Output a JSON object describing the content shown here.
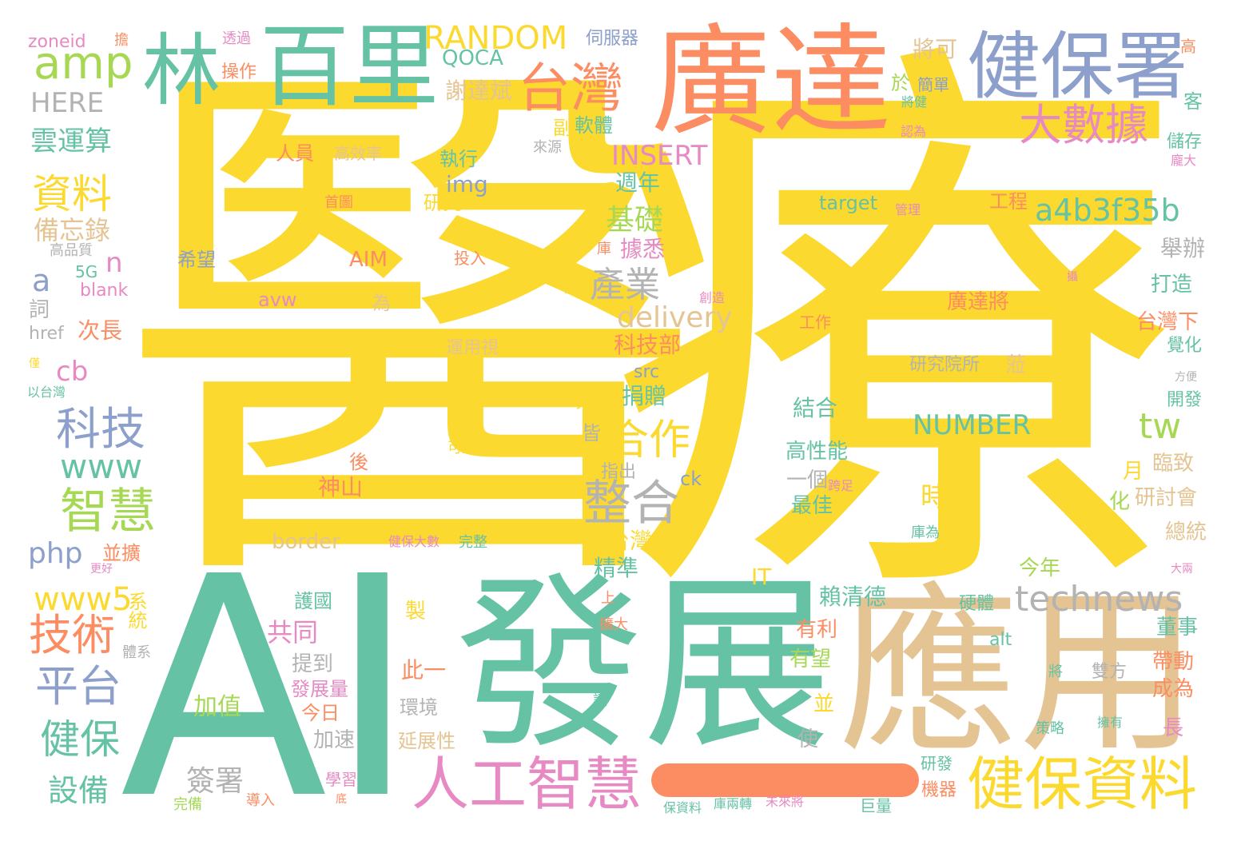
{
  "palette": {
    "yellow": "#fbd92f",
    "teal": "#66c2a5",
    "orange": "#fc8d62",
    "blue": "#8da0cb",
    "pink": "#e78ac3",
    "green": "#a6d854",
    "tan": "#e5c494",
    "gray": "#b3b3b3"
  },
  "words": [
    {
      "text": "醫",
      "color": "yellow"
    },
    {
      "text": "療",
      "color": "yellow"
    },
    {
      "text": "AI",
      "color": "teal"
    },
    {
      "text": "發展",
      "color": "teal"
    },
    {
      "text": "應用",
      "color": "tan"
    },
    {
      "text": "廣達",
      "color": "orange"
    },
    {
      "text": "百里",
      "color": "teal"
    },
    {
      "text": "林",
      "color": "teal"
    },
    {
      "text": "健保署",
      "color": "blue"
    },
    {
      "text": "amp",
      "color": "green"
    },
    {
      "text": "台灣",
      "color": "orange"
    },
    {
      "text": "大數據",
      "color": "pink"
    },
    {
      "text": "RANDOM",
      "color": "yellow"
    },
    {
      "text": "QOCA",
      "color": "teal"
    },
    {
      "text": "HERE",
      "color": "gray"
    },
    {
      "text": "zoneid",
      "color": "pink"
    },
    {
      "text": "雲運算",
      "color": "teal"
    },
    {
      "text": "資料",
      "color": "yellow"
    },
    {
      "text": "備忘錄",
      "color": "tan"
    },
    {
      "text": "科技",
      "color": "blue"
    },
    {
      "text": "www",
      "color": "teal"
    },
    {
      "text": "智慧",
      "color": "green"
    },
    {
      "text": "php",
      "color": "blue"
    },
    {
      "text": "www5",
      "color": "yellow"
    },
    {
      "text": "技術",
      "color": "orange"
    },
    {
      "text": "平台",
      "color": "blue"
    },
    {
      "text": "健保",
      "color": "teal"
    },
    {
      "text": "設備",
      "color": "teal"
    },
    {
      "text": "人工智慧",
      "color": "pink"
    },
    {
      "text": "健保資料",
      "color": "yellow"
    },
    {
      "text": "technews",
      "color": "gray"
    },
    {
      "text": "a4b3f35b",
      "color": "teal"
    },
    {
      "text": "整合",
      "color": "gray"
    },
    {
      "text": "合作",
      "color": "yellow"
    },
    {
      "text": "NUMBER",
      "color": "teal"
    },
    {
      "text": "INSERT",
      "color": "pink"
    },
    {
      "text": "delivery",
      "color": "tan"
    },
    {
      "text": "產業",
      "color": "gray"
    },
    {
      "text": "基礎",
      "color": "green"
    },
    {
      "text": "tw",
      "color": "green"
    },
    {
      "text": "cb",
      "color": "pink"
    },
    {
      "text": "a",
      "color": "blue"
    },
    {
      "text": "n",
      "color": "pink"
    },
    {
      "text": "5G",
      "color": "teal"
    },
    {
      "text": "blank",
      "color": "pink"
    },
    {
      "text": "href",
      "color": "gray"
    },
    {
      "text": "次長",
      "color": "orange"
    },
    {
      "text": "詞",
      "color": "gray"
    },
    {
      "text": "高品質",
      "color": "gray"
    },
    {
      "text": "以台灣",
      "color": "teal"
    },
    {
      "text": "僅",
      "color": "yellow"
    },
    {
      "text": "系統",
      "color": "yellow"
    },
    {
      "text": "並擴",
      "color": "orange"
    },
    {
      "text": "更好",
      "color": "pink"
    },
    {
      "text": "體系",
      "color": "gray"
    },
    {
      "text": "伺服器",
      "color": "blue"
    },
    {
      "text": "將可",
      "color": "tan"
    },
    {
      "text": "謝達斌",
      "color": "tan"
    },
    {
      "text": "於",
      "color": "green"
    },
    {
      "text": "簡單",
      "color": "blue"
    },
    {
      "text": "將健",
      "color": "teal"
    },
    {
      "text": "副",
      "color": "yellow"
    },
    {
      "text": "軟體",
      "color": "teal"
    },
    {
      "text": "來源",
      "color": "gray"
    },
    {
      "text": "人員",
      "color": "orange"
    },
    {
      "text": "高效率",
      "color": "tan"
    },
    {
      "text": "執行",
      "color": "teal"
    },
    {
      "text": "img",
      "color": "blue"
    },
    {
      "text": "研究",
      "color": "yellow"
    },
    {
      "text": "首圖",
      "color": "orange"
    },
    {
      "text": "希望",
      "color": "blue"
    },
    {
      "text": "AIM",
      "color": "orange"
    },
    {
      "text": "投入",
      "color": "orange"
    },
    {
      "text": "avw",
      "color": "pink"
    },
    {
      "text": "為",
      "color": "tan"
    },
    {
      "text": "週年",
      "color": "teal"
    },
    {
      "text": "據悉",
      "color": "pink"
    },
    {
      "text": "庫",
      "color": "orange"
    },
    {
      "text": "科技部",
      "color": "orange"
    },
    {
      "text": "src",
      "color": "blue"
    },
    {
      "text": "捐贈",
      "color": "teal"
    },
    {
      "text": "分析",
      "color": "yellow"
    },
    {
      "text": "皆",
      "color": "gray"
    },
    {
      "text": "指出",
      "color": "gray"
    },
    {
      "text": "ck",
      "color": "blue"
    },
    {
      "text": "可望",
      "color": "yellow"
    },
    {
      "text": "後",
      "color": "orange"
    },
    {
      "text": "神山",
      "color": "orange"
    },
    {
      "text": "border",
      "color": "tan"
    },
    {
      "text": "健保大數",
      "color": "pink"
    },
    {
      "text": "完整",
      "color": "teal"
    },
    {
      "text": "充台灣",
      "color": "yellow"
    },
    {
      "text": "精準",
      "color": "teal"
    },
    {
      "text": "IT",
      "color": "yellow"
    },
    {
      "text": "上",
      "color": "orange"
    },
    {
      "text": "擴大",
      "color": "orange"
    },
    {
      "text": "製",
      "color": "yellow"
    },
    {
      "text": "共同",
      "color": "pink"
    },
    {
      "text": "護國",
      "color": "teal"
    },
    {
      "text": "提到",
      "color": "gray"
    },
    {
      "text": "此一",
      "color": "orange"
    },
    {
      "text": "發展量",
      "color": "pink"
    },
    {
      "text": "加值",
      "color": "green"
    },
    {
      "text": "今日",
      "color": "orange"
    },
    {
      "text": "環境",
      "color": "gray"
    },
    {
      "text": "加速",
      "color": "gray"
    },
    {
      "text": "延展性",
      "color": "tan"
    },
    {
      "text": "簽署",
      "color": "gray"
    },
    {
      "text": "學習",
      "color": "pink"
    },
    {
      "text": "導入",
      "color": "orange"
    },
    {
      "text": "完備",
      "color": "green"
    },
    {
      "text": "底",
      "color": "orange"
    },
    {
      "text": "讓",
      "color": "teal"
    },
    {
      "text": "使",
      "color": "gray"
    },
    {
      "text": "保資料",
      "color": "teal"
    },
    {
      "text": "庫兩轉",
      "color": "teal"
    },
    {
      "text": "未來將",
      "color": "pink"
    },
    {
      "text": "巨量",
      "color": "teal"
    },
    {
      "text": "機器",
      "color": "orange"
    },
    {
      "text": "研發",
      "color": "teal"
    },
    {
      "text": "擁有",
      "color": "teal"
    },
    {
      "text": "策略",
      "color": "teal"
    },
    {
      "text": "長",
      "color": "pink"
    },
    {
      "text": "成為",
      "color": "orange"
    },
    {
      "text": "帶動",
      "color": "orange"
    },
    {
      "text": "將",
      "color": "teal"
    },
    {
      "text": "雙方",
      "color": "gray"
    },
    {
      "text": "董事",
      "color": "teal"
    },
    {
      "text": "alt",
      "color": "teal"
    },
    {
      "text": "硬體",
      "color": "teal"
    },
    {
      "text": "今年",
      "color": "green"
    },
    {
      "text": "大兩",
      "color": "pink"
    },
    {
      "text": "總統",
      "color": "tan"
    },
    {
      "text": "研討會",
      "color": "tan"
    },
    {
      "text": "臨致",
      "color": "tan"
    },
    {
      "text": "化",
      "color": "green"
    },
    {
      "text": "月",
      "color": "yellow"
    },
    {
      "text": "開發",
      "color": "teal"
    },
    {
      "text": "方便",
      "color": "gray"
    },
    {
      "text": "覺化",
      "color": "teal"
    },
    {
      "text": "台灣下",
      "color": "orange"
    },
    {
      "text": "打造",
      "color": "teal"
    },
    {
      "text": "舉辦",
      "color": "gray"
    },
    {
      "text": "攝",
      "color": "pink"
    },
    {
      "text": "儲存",
      "color": "teal"
    },
    {
      "text": "龐大",
      "color": "pink"
    },
    {
      "text": "認為",
      "color": "pink"
    },
    {
      "text": "客",
      "color": "teal"
    },
    {
      "text": "高",
      "color": "orange"
    },
    {
      "text": "工程",
      "color": "orange"
    },
    {
      "text": "target",
      "color": "teal"
    },
    {
      "text": "管理",
      "color": "pink"
    },
    {
      "text": "廣達將",
      "color": "orange"
    },
    {
      "text": "研究院所",
      "color": "gray"
    },
    {
      "text": "蒞",
      "color": "tan"
    },
    {
      "text": "結合",
      "color": "teal"
    },
    {
      "text": "工作",
      "color": "orange"
    },
    {
      "text": "高性能",
      "color": "teal"
    },
    {
      "text": "一個",
      "color": "gray"
    },
    {
      "text": "最佳",
      "color": "teal"
    },
    {
      "text": "時",
      "color": "yellow"
    },
    {
      "text": "賴清德",
      "color": "teal"
    },
    {
      "text": "有利",
      "color": "orange"
    },
    {
      "text": "有望",
      "color": "green"
    },
    {
      "text": "並",
      "color": "yellow"
    },
    {
      "text": "庫為",
      "color": "teal"
    },
    {
      "text": "跨足",
      "color": "pink"
    },
    {
      "text": "創造",
      "color": "pink"
    },
    {
      "text": "要",
      "color": "yellow"
    },
    {
      "text": "運用視",
      "color": "tan"
    },
    {
      "text": "操作",
      "color": "orange"
    },
    {
      "text": "透過",
      "color": "pink"
    },
    {
      "text": "擔",
      "color": "orange"
    }
  ]
}
